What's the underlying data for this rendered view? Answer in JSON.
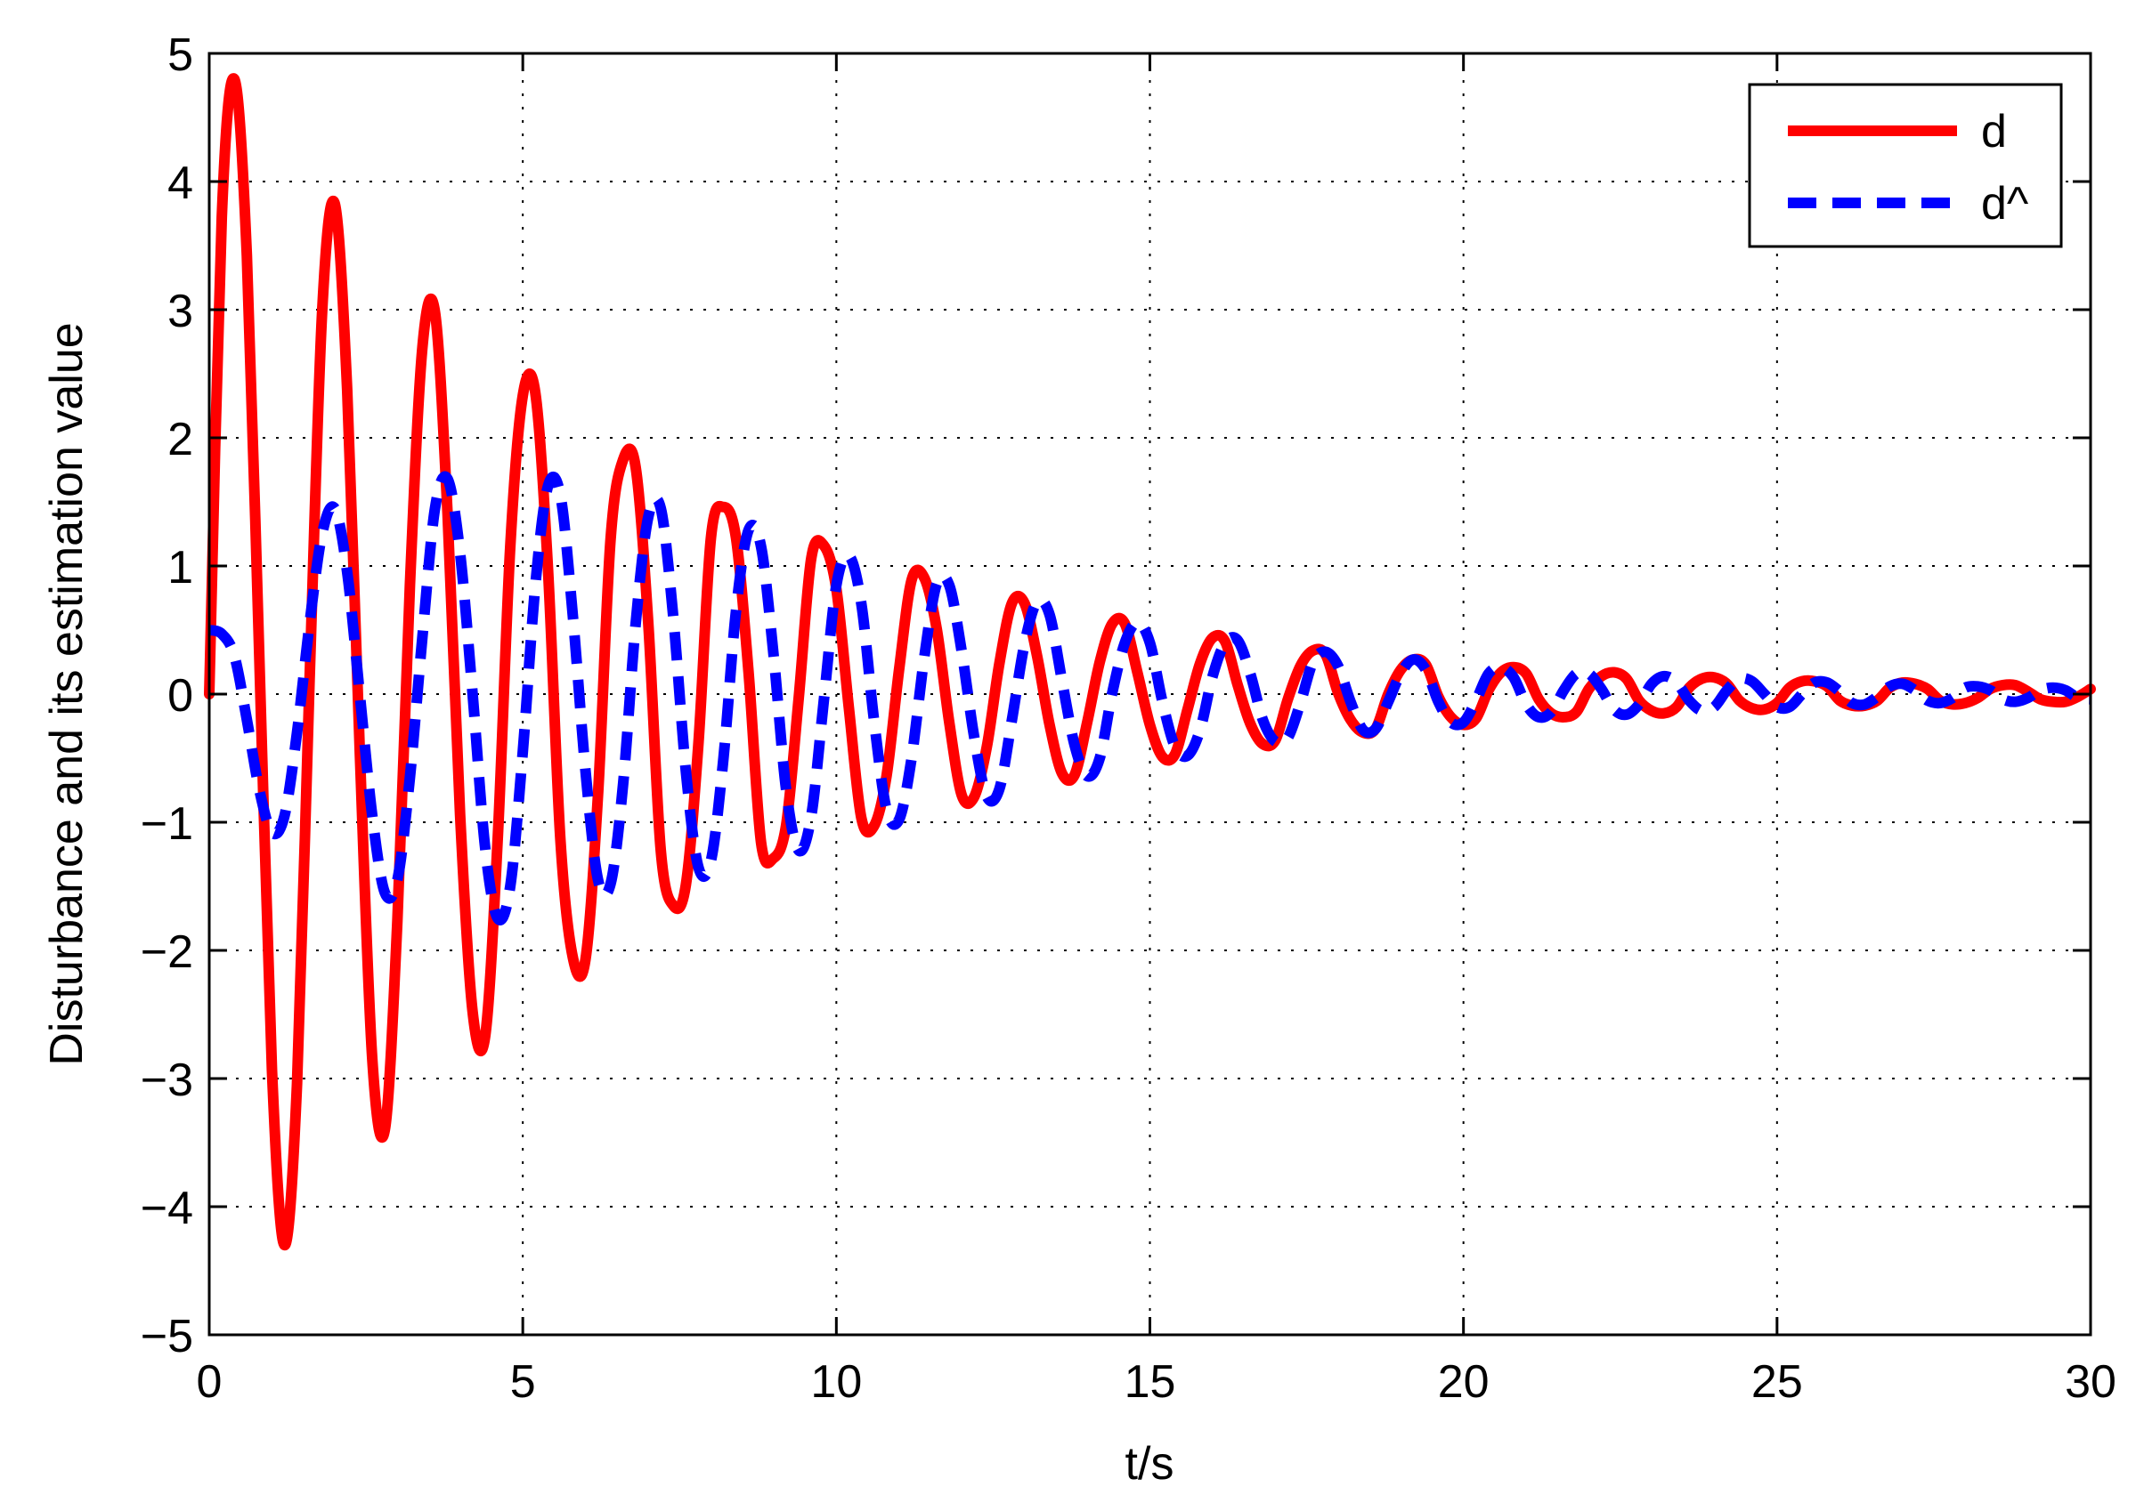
{
  "chart_data": {
    "type": "line",
    "xlabel": "t/s",
    "ylabel": "Disturbance and its estimation value",
    "xlim": [
      0,
      30
    ],
    "ylim": [
      -5,
      5
    ],
    "xticks": [
      0,
      5,
      10,
      15,
      20,
      25,
      30
    ],
    "yticks": [
      -5,
      -4,
      -3,
      -2,
      -1,
      0,
      1,
      2,
      3,
      4,
      5
    ],
    "xtick_labels": [
      "0",
      "5",
      "10",
      "15",
      "20",
      "25",
      "30"
    ],
    "ytick_labels": [
      "−5",
      "−4",
      "−3",
      "−2",
      "−1",
      "0",
      "1",
      "2",
      "3",
      "4",
      "5"
    ],
    "grid": true,
    "legend_position": "top-right",
    "series": [
      {
        "name": "d",
        "color": "#ff0000",
        "style": "solid",
        "x": [
          0,
          0.2,
          0.4,
          0.6,
          0.8,
          1.0,
          1.2,
          1.4,
          1.6,
          1.8,
          2.0,
          2.2,
          2.4,
          2.6,
          2.8,
          3.0,
          3.2,
          3.4,
          3.6,
          3.8,
          4.0,
          4.2,
          4.4,
          4.6,
          4.8,
          5.0,
          5.2,
          5.4,
          5.6,
          5.8,
          6.0,
          6.2,
          6.4,
          6.6,
          6.8,
          7.0,
          7.2,
          7.4,
          7.6,
          7.8,
          8.0,
          8.2,
          8.4,
          8.6,
          8.8,
          9.0,
          9.2,
          9.4,
          9.6,
          9.8,
          10.0,
          10.2,
          10.4,
          10.6,
          10.8,
          11.0,
          11.2,
          11.4,
          11.6,
          11.8,
          12.0,
          12.2,
          12.4,
          12.6,
          12.8,
          13.0,
          13.2,
          13.4,
          13.6,
          13.8,
          14.0,
          14.2,
          14.4,
          14.6,
          14.8,
          15.0,
          15.2,
          15.4,
          15.6,
          15.8,
          16.0,
          16.2,
          16.4,
          16.6,
          16.8,
          17.0,
          17.2,
          17.4,
          17.6,
          17.8,
          18.0,
          18.2,
          18.4,
          18.6,
          18.8,
          19.0,
          19.2,
          19.4,
          19.6,
          19.8,
          20.0,
          20.2,
          20.4,
          20.6,
          20.8,
          21.0,
          21.2,
          21.4,
          21.6,
          21.8,
          22.0,
          22.2,
          22.4,
          22.6,
          22.8,
          23.0,
          23.2,
          23.4,
          23.6,
          23.8,
          24.0,
          24.2,
          24.4,
          24.6,
          24.8,
          25.0,
          25.2,
          25.4,
          25.6,
          25.8,
          26.0,
          26.2,
          26.4,
          26.6,
          26.8,
          27.0,
          27.2,
          27.4,
          27.6,
          27.8,
          28.0,
          28.2,
          28.4,
          28.6,
          28.8,
          29.0,
          29.2,
          29.4,
          29.6,
          29.8,
          30.0
        ],
        "y": [
          0,
          3.72,
          4.8,
          3.42,
          0.26,
          -2.93,
          -4.3,
          -3.04,
          0.11,
          2.98,
          3.83,
          2.37,
          -0.44,
          -2.85,
          -3.4,
          -1.77,
          0.85,
          2.71,
          2.98,
          1.41,
          -0.94,
          -2.48,
          -2.67,
          -1.13,
          1.15,
          2.33,
          2.35,
          0.99,
          -1.14,
          -2.06,
          -2.07,
          -0.78,
          1.21,
          1.83,
          1.77,
          0.56,
          -1.22,
          -1.65,
          -1.49,
          -0.39,
          1.22,
          1.46,
          1.22,
          0.17,
          -1.16,
          -1.28,
          -1.02,
          -0.03,
          1.06,
          1.16,
          0.82,
          -0.11,
          -0.97,
          -1.03,
          -0.64,
          0.19,
          0.89,
          0.91,
          0.51,
          -0.22,
          -0.79,
          -0.8,
          -0.41,
          0.24,
          0.71,
          0.71,
          0.3,
          -0.24,
          -0.62,
          -0.63,
          -0.22,
          0.25,
          0.55,
          0.55,
          0.17,
          -0.24,
          -0.49,
          -0.47,
          -0.12,
          0.24,
          0.44,
          0.41,
          0.07,
          -0.23,
          -0.39,
          -0.36,
          -0.04,
          0.22,
          0.34,
          0.31,
          0.01,
          -0.2,
          -0.3,
          -0.27,
          0.0,
          0.19,
          0.27,
          0.23,
          -0.02,
          -0.18,
          -0.24,
          -0.19,
          0.03,
          0.17,
          0.21,
          0.16,
          -0.04,
          -0.15,
          -0.18,
          -0.14,
          0.04,
          0.14,
          0.17,
          0.12,
          -0.05,
          -0.13,
          -0.15,
          -0.1,
          0.05,
          0.12,
          0.13,
          0.08,
          -0.05,
          -0.11,
          -0.12,
          -0.07,
          0.05,
          0.1,
          0.1,
          0.06,
          -0.05,
          -0.09,
          -0.09,
          -0.05,
          0.05,
          0.09,
          0.08,
          0.04,
          -0.05,
          -0.08,
          -0.07,
          -0.03,
          0.04,
          0.07,
          0.07,
          0.02,
          -0.04,
          -0.06,
          -0.06,
          -0.02,
          0.04
        ]
      },
      {
        "name": "d^",
        "color": "#0000ff",
        "style": "dashed",
        "x": [
          0,
          0.2,
          0.4,
          0.6,
          0.8,
          1.0,
          1.2,
          1.4,
          1.6,
          1.8,
          2.0,
          2.2,
          2.4,
          2.6,
          2.8,
          3.0,
          3.2,
          3.4,
          3.6,
          3.8,
          4.0,
          4.2,
          4.4,
          4.6,
          4.8,
          5.0,
          5.2,
          5.4,
          5.6,
          5.8,
          6.0,
          6.2,
          6.4,
          6.6,
          6.8,
          7.0,
          7.2,
          7.4,
          7.6,
          7.8,
          8.0,
          8.2,
          8.4,
          8.6,
          8.8,
          9.0,
          9.2,
          9.4,
          9.6,
          9.8,
          10.0,
          10.2,
          10.4,
          10.6,
          10.8,
          11.0,
          11.2,
          11.4,
          11.6,
          11.8,
          12.0,
          12.2,
          12.4,
          12.6,
          12.8,
          13.0,
          13.2,
          13.4,
          13.6,
          13.8,
          14.0,
          14.2,
          14.4,
          14.6,
          14.8,
          15.0,
          15.2,
          15.4,
          15.6,
          15.8,
          16.0,
          16.2,
          16.4,
          16.6,
          16.8,
          17.0,
          17.2,
          17.4,
          17.6,
          17.8,
          18.0,
          18.2,
          18.4,
          18.6,
          18.8,
          19.0,
          19.2,
          19.4,
          19.6,
          19.8,
          20.0,
          20.2,
          20.4,
          20.6,
          20.8,
          21.0,
          21.2,
          21.4,
          21.6,
          21.8,
          22.0,
          22.2,
          22.4,
          22.6,
          22.8,
          23.0,
          23.2,
          23.4,
          23.6,
          23.8,
          24.0,
          24.2,
          24.4,
          24.6,
          24.8,
          25.0,
          25.2,
          25.4,
          25.6,
          25.8,
          26.0,
          26.2,
          26.4,
          26.6,
          26.8,
          27.0,
          27.2,
          27.4,
          27.6,
          27.8,
          28.0,
          28.2,
          28.4,
          28.6,
          28.8,
          29.0,
          29.2,
          29.4,
          29.6,
          29.8,
          30.0
        ],
        "y": [
          0.5,
          0.47,
          0.3,
          -0.2,
          -0.75,
          -1.08,
          -0.95,
          -0.3,
          0.55,
          1.25,
          1.45,
          0.95,
          0.0,
          -0.95,
          -1.55,
          -1.45,
          -0.65,
          0.45,
          1.45,
          1.68,
          1.1,
          0.0,
          -1.2,
          -1.75,
          -1.5,
          -0.45,
          0.85,
          1.62,
          1.55,
          0.6,
          -0.6,
          -1.45,
          -1.48,
          -0.7,
          0.55,
          1.38,
          1.45,
          0.6,
          -0.6,
          -1.35,
          -1.3,
          -0.5,
          0.65,
          1.28,
          1.15,
          0.3,
          -0.75,
          -1.22,
          -0.95,
          -0.05,
          0.85,
          1.08,
          0.7,
          -0.2,
          -0.9,
          -0.98,
          -0.5,
          0.28,
          0.86,
          0.85,
          0.33,
          -0.34,
          -0.8,
          -0.74,
          -0.2,
          0.39,
          0.72,
          0.62,
          0.1,
          -0.4,
          -0.64,
          -0.5,
          0.01,
          0.4,
          0.56,
          0.4,
          -0.06,
          -0.41,
          -0.48,
          -0.28,
          0.14,
          0.4,
          0.42,
          0.16,
          -0.2,
          -0.37,
          -0.34,
          -0.07,
          0.25,
          0.33,
          0.22,
          -0.06,
          -0.28,
          -0.27,
          -0.06,
          0.16,
          0.27,
          0.19,
          -0.06,
          -0.22,
          -0.22,
          -0.05,
          0.16,
          0.21,
          0.13,
          -0.08,
          -0.18,
          -0.14,
          0.03,
          0.16,
          0.16,
          0.04,
          -0.12,
          -0.16,
          -0.08,
          0.08,
          0.14,
          0.09,
          -0.05,
          -0.13,
          -0.1,
          0.03,
          0.12,
          0.1,
          0.0,
          -0.1,
          -0.1,
          0.0,
          0.09,
          0.09,
          0.02,
          -0.07,
          -0.08,
          -0.02,
          0.06,
          0.08,
          0.03,
          -0.05,
          -0.07,
          -0.03,
          0.05,
          0.06,
          0.03,
          -0.04,
          -0.06,
          -0.03,
          0.03,
          0.05,
          0.03,
          -0.03,
          -0.04
        ]
      }
    ]
  }
}
